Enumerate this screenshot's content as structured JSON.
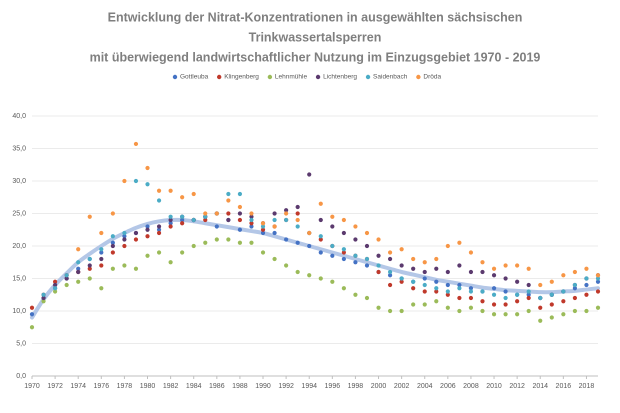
{
  "chart_data": {
    "type": "scatter",
    "title": [
      "Entwicklung der Nitrat-Konzentrationen in ausgewählten sächsischen",
      "Trinkwassertalsperren",
      "mit überwiegend landwirtschaftlicher Nutzung im Einzugsgebiet 1970  - 2019"
    ],
    "x": [
      1970,
      1971,
      1972,
      1973,
      1974,
      1975,
      1976,
      1977,
      1978,
      1979,
      1980,
      1981,
      1982,
      1983,
      1984,
      1985,
      1986,
      1987,
      1988,
      1989,
      1990,
      1991,
      1992,
      1993,
      1994,
      1995,
      1996,
      1997,
      1998,
      1999,
      2000,
      2001,
      2002,
      2003,
      2004,
      2005,
      2006,
      2007,
      2008,
      2009,
      2010,
      2011,
      2012,
      2013,
      2014,
      2015,
      2016,
      2017,
      2018,
      2019
    ],
    "series": [
      {
        "name": "Gottleuba",
        "color": "#4472c4",
        "values": [
          9.5,
          12,
          13.5,
          15,
          16.5,
          18,
          19,
          20.5,
          21.5,
          22,
          23,
          22.5,
          23.5,
          24,
          24,
          24.5,
          23,
          24,
          22.5,
          23,
          22,
          22,
          21,
          20.5,
          20,
          19,
          18.5,
          18,
          17.5,
          17,
          16,
          15.5,
          15,
          14.5,
          15,
          14.5,
          14,
          14,
          13.5,
          13,
          13.5,
          13,
          12.5,
          12.5,
          12,
          12.5,
          13,
          13.5,
          14,
          14.5
        ]
      },
      {
        "name": "Klingenberg",
        "color": "#c0392b",
        "values": [
          10.5,
          12.5,
          14.5,
          15.5,
          16,
          16.5,
          17,
          19,
          20,
          21,
          21.5,
          22,
          23,
          23.5,
          24,
          24,
          25,
          25,
          24,
          23.5,
          22.5,
          23,
          24,
          25,
          22,
          21,
          20,
          19,
          18.5,
          18,
          16,
          14,
          14.5,
          13.5,
          13,
          13,
          12.5,
          12,
          12,
          11.5,
          11,
          11,
          11.5,
          12,
          10.5,
          11,
          11.5,
          12,
          12.5,
          13
        ]
      },
      {
        "name": "Lehnmühle",
        "color": "#9bbb59",
        "values": [
          7.5,
          11.5,
          13,
          14,
          14.5,
          15,
          13.5,
          16.5,
          17,
          16.5,
          18.5,
          19,
          17.5,
          19,
          20,
          20.5,
          21,
          21,
          20.5,
          20.5,
          19,
          18,
          17,
          16,
          15.5,
          15,
          14.5,
          13.5,
          12.5,
          12,
          10.5,
          10,
          10,
          11,
          11,
          11.5,
          10.5,
          10,
          10.5,
          10,
          9.5,
          9.5,
          9.5,
          10,
          8.5,
          9,
          9.5,
          10,
          10,
          10.5
        ]
      },
      {
        "name": "Lichtenberg",
        "color": "#5b3a6e",
        "values": [
          null,
          12,
          14,
          15,
          16,
          17,
          18,
          20,
          21,
          22,
          22.5,
          23,
          24,
          24.5,
          24,
          24.5,
          25,
          24,
          25,
          24.5,
          23.5,
          25,
          25.5,
          26,
          31,
          24,
          23,
          22,
          21,
          20,
          18.5,
          18,
          17,
          16.5,
          16,
          16.5,
          16,
          17,
          16,
          16,
          15.5,
          15,
          14.5,
          14,
          12,
          12.5,
          13,
          14,
          15,
          15.5
        ]
      },
      {
        "name": "Saidenbach",
        "color": "#4bacc6",
        "values": [
          null,
          12.5,
          13.5,
          15.5,
          17.5,
          18,
          19.5,
          21.5,
          22,
          30,
          29.5,
          27,
          24.5,
          24.5,
          24,
          24.5,
          25,
          28,
          28,
          24,
          23,
          24,
          24,
          23,
          22,
          21.5,
          20,
          19.5,
          18.5,
          18,
          17,
          16,
          15,
          14.5,
          14,
          13.5,
          13,
          13.5,
          13,
          13,
          12.5,
          12,
          12.5,
          13,
          12,
          12.5,
          13,
          14,
          15,
          15
        ]
      },
      {
        "name": "Dröda",
        "color": "#f79646",
        "values": [
          null,
          null,
          null,
          null,
          19.5,
          24.5,
          22,
          25,
          30,
          35.7,
          32,
          28.5,
          28.5,
          27.5,
          28,
          25,
          25,
          27,
          26,
          25,
          23.5,
          23,
          25,
          24,
          22,
          26.5,
          24.5,
          24,
          23,
          22,
          21,
          19,
          19.5,
          18,
          17.5,
          18,
          20,
          20.5,
          19,
          17.5,
          16.5,
          17,
          17,
          16.5,
          14,
          14.5,
          15.5,
          16,
          16.5,
          15.5
        ]
      }
    ],
    "trend": {
      "color": "#b4c7e7",
      "values": [
        9,
        11.8,
        14,
        15.8,
        17.5,
        18.8,
        20,
        21.1,
        22,
        22.8,
        23.4,
        23.8,
        24,
        24,
        23.8,
        23.5,
        23.2,
        22.9,
        22.6,
        22.3,
        22,
        21.5,
        21,
        20.5,
        20,
        19.5,
        19,
        18.5,
        18,
        17.5,
        17,
        16.5,
        16,
        15.6,
        15.2,
        14.8,
        14.5,
        14.2,
        13.9,
        13.6,
        13.4,
        13.2,
        13.1,
        13,
        12.9,
        12.9,
        13,
        13.1,
        13.3,
        13.5
      ]
    },
    "xlim": [
      1970,
      2019
    ],
    "xticks": [
      1970,
      1972,
      1974,
      1976,
      1978,
      1980,
      1982,
      1984,
      1986,
      1988,
      1990,
      1992,
      1994,
      1996,
      1998,
      2000,
      2002,
      2004,
      2006,
      2008,
      2010,
      2012,
      2014,
      2016,
      2018
    ],
    "ylim": [
      0,
      40
    ],
    "yticks": [
      {
        "value": 0,
        "label": "0,0"
      },
      {
        "value": 5,
        "label": "5,0"
      },
      {
        "value": 10,
        "label": "10,0"
      },
      {
        "value": 15,
        "label": "15,0"
      },
      {
        "value": 20,
        "label": "20,0"
      },
      {
        "value": 25,
        "label": "25,0"
      },
      {
        "value": 30,
        "label": "30,0"
      },
      {
        "value": 35,
        "label": "35,0"
      },
      {
        "value": 40,
        "label": "40,0"
      }
    ],
    "grid": true
  }
}
